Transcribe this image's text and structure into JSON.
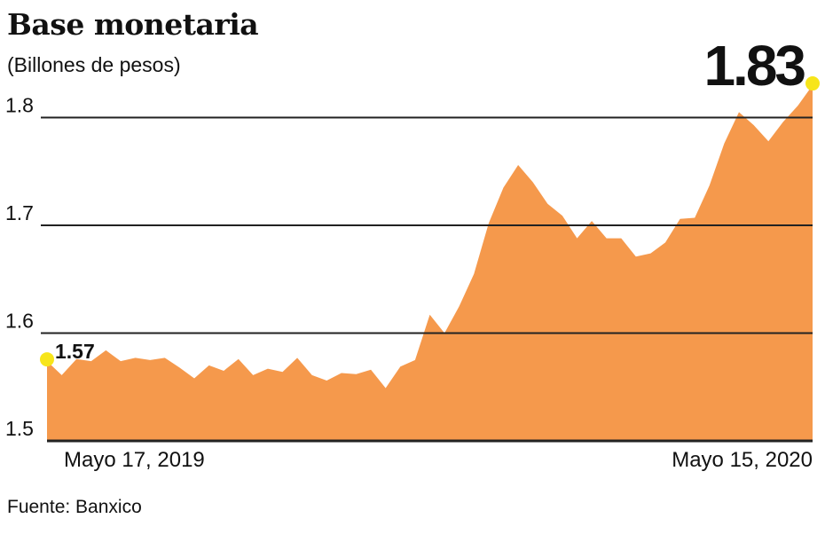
{
  "header": {
    "title": "Base monetaria",
    "subtitle": "(Billones de pesos)"
  },
  "footer": {
    "source": "Fuente: Banxico"
  },
  "colors": {
    "area_fill": "#f5994c",
    "marker": "#f7e51a",
    "gridline": "#222222",
    "text": "#111111"
  },
  "chart_data": {
    "type": "area",
    "title": "Base monetaria",
    "subtitle": "(Billones de pesos)",
    "xlabel": "",
    "ylabel": "",
    "ylim": [
      1.5,
      1.83
    ],
    "y_ticks": [
      "1.5",
      "1.6",
      "1.7",
      "1.8"
    ],
    "x_labels": [
      "Mayo 17, 2019",
      "Mayo 15, 2020"
    ],
    "grid": true,
    "legend": "none",
    "series": [
      {
        "values": [
          1.574,
          1.561,
          1.576,
          1.574,
          1.584,
          1.574,
          1.577,
          1.575,
          1.577,
          1.568,
          1.558,
          1.57,
          1.565,
          1.576,
          1.561,
          1.567,
          1.564,
          1.577,
          1.561,
          1.556,
          1.563,
          1.562,
          1.566,
          1.549,
          1.569,
          1.575,
          1.617,
          1.6,
          1.625,
          1.655,
          1.702,
          1.735,
          1.756,
          1.74,
          1.72,
          1.709,
          1.688,
          1.704,
          1.688,
          1.688,
          1.671,
          1.674,
          1.684,
          1.706,
          1.707,
          1.737,
          1.776,
          1.805,
          1.793,
          1.778,
          1.796,
          1.811,
          1.83
        ]
      }
    ],
    "annotations": [
      {
        "label": "1.57",
        "position": "start"
      },
      {
        "label": "1.83",
        "position": "end"
      }
    ]
  }
}
